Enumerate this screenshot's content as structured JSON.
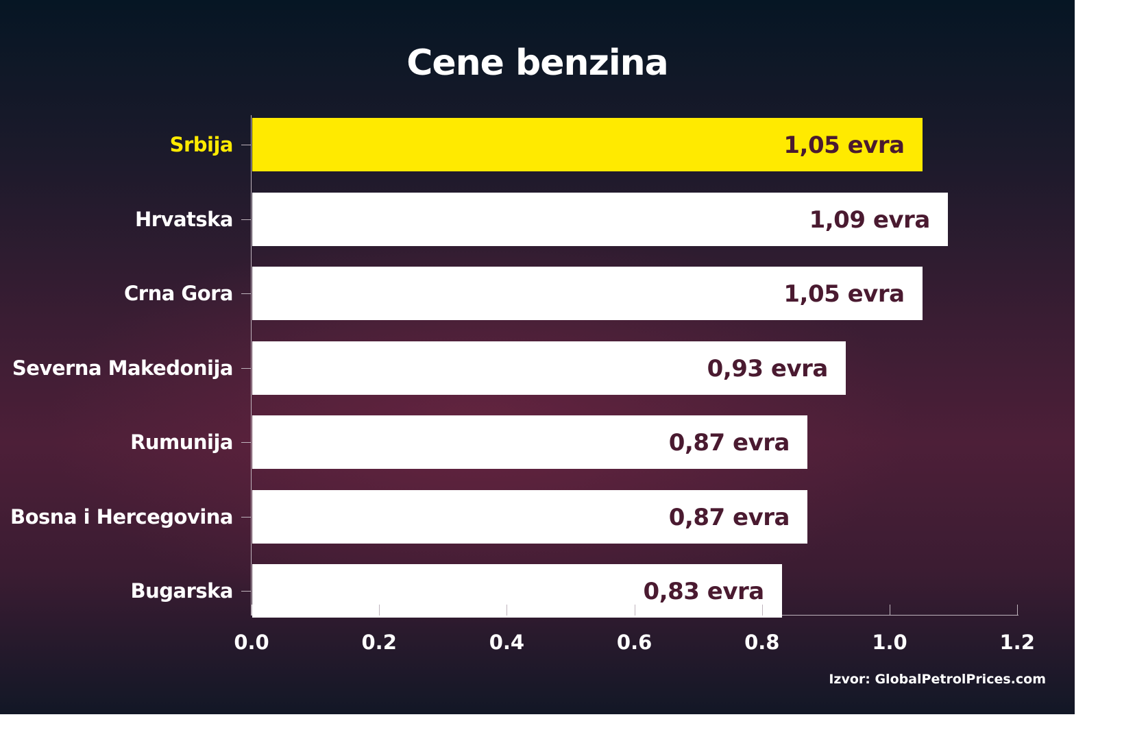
{
  "chart_data": {
    "type": "bar",
    "orientation": "horizontal",
    "title": "Cene benzina",
    "categories": [
      "Srbija",
      "Hrvatska",
      "Crna Gora",
      "Severna Makedonija",
      "Rumunija",
      "Bosna i Hercegovina",
      "Bugarska"
    ],
    "values": [
      1.05,
      1.09,
      1.05,
      0.93,
      0.87,
      0.87,
      0.83
    ],
    "value_labels": [
      "1,05 evra",
      "1,09 evra",
      "1,05 evra",
      "0,93 evra",
      "0,87 evra",
      "0,87 evra",
      "0,83 evra"
    ],
    "highlight": "Srbija",
    "xlabel": "",
    "ylabel": "",
    "xlim": [
      0,
      1.2
    ],
    "xticks": [
      "0.0",
      "0.2",
      "0.4",
      "0.6",
      "0.8",
      "1.0",
      "1.2"
    ],
    "grid": false,
    "legend": null,
    "source": "Izvor: GlobalPetrolPrices.com"
  },
  "colors": {
    "highlight_bar": "#ffea00",
    "bar": "#ffffff",
    "value_text": "#4a1a30",
    "highlight_label": "#ffea00",
    "label": "#ffffff"
  }
}
